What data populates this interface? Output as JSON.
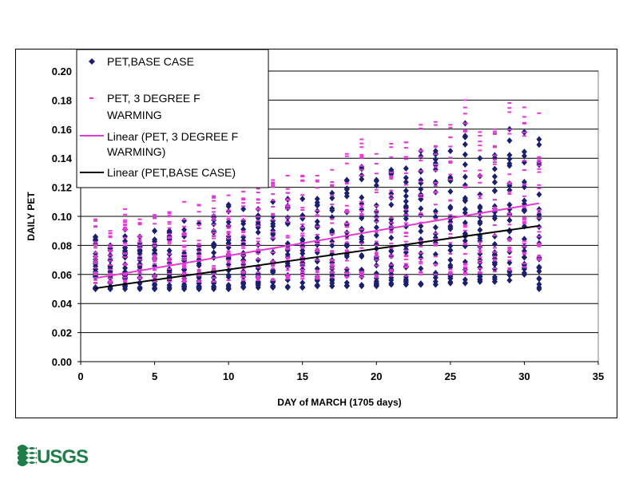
{
  "chart_data": {
    "type": "scatter",
    "title": "",
    "xlabel": "DAY of MARCH (1705 days)",
    "ylabel": "DAILY PET",
    "xlim": [
      0,
      35
    ],
    "ylim": [
      0,
      0.2
    ],
    "x_ticks": [
      "0",
      "5",
      "10",
      "15",
      "20",
      "25",
      "30",
      "35"
    ],
    "y_ticks": [
      "0.00",
      "0.02",
      "0.04",
      "0.06",
      "0.08",
      "0.10",
      "0.12",
      "0.14",
      "0.16",
      "0.18",
      "0.20"
    ],
    "grid": "horizontal",
    "legend_position": "top-left",
    "legend": [
      {
        "label_lines": [
          "PET,BASE CASE"
        ],
        "kind": "marker-diamond",
        "color": "#1a1f6e"
      },
      {
        "label_lines": [
          "PET, 3 DEGREE F",
          "WARMING"
        ],
        "kind": "marker-dash",
        "color": "#e23ad6"
      },
      {
        "label_lines": [
          "Linear (PET, 3 DEGREE F",
          "WARMING)"
        ],
        "kind": "line",
        "color": "#e23ad6"
      },
      {
        "label_lines": [
          "Linear (PET,BASE CASE)"
        ],
        "kind": "line",
        "color": "#000000"
      }
    ],
    "series": [
      {
        "name": "PET,BASE CASE",
        "marker": "diamond",
        "color": "#1a1f6e",
        "range_by_day": {
          "x": [
            1,
            2,
            3,
            4,
            5,
            6,
            7,
            8,
            9,
            10,
            11,
            12,
            13,
            14,
            15,
            16,
            17,
            18,
            19,
            20,
            21,
            22,
            23,
            24,
            25,
            26,
            27,
            28,
            29,
            30,
            31
          ],
          "min": [
            0.05,
            0.05,
            0.05,
            0.05,
            0.05,
            0.05,
            0.05,
            0.05,
            0.05,
            0.05,
            0.051,
            0.051,
            0.051,
            0.051,
            0.051,
            0.052,
            0.052,
            0.052,
            0.052,
            0.052,
            0.053,
            0.053,
            0.053,
            0.053,
            0.054,
            0.054,
            0.055,
            0.055,
            0.056,
            0.06,
            0.05
          ],
          "max": [
            0.086,
            0.08,
            0.091,
            0.086,
            0.09,
            0.09,
            0.097,
            0.095,
            0.1,
            0.108,
            0.105,
            0.105,
            0.11,
            0.112,
            0.112,
            0.112,
            0.116,
            0.125,
            0.134,
            0.125,
            0.132,
            0.133,
            0.145,
            0.145,
            0.145,
            0.164,
            0.14,
            0.142,
            0.16,
            0.158,
            0.153
          ]
        }
      },
      {
        "name": "PET, 3 DEGREE F WARMING",
        "marker": "dash",
        "color": "#e23ad6",
        "range_by_day": {
          "x": [
            1,
            2,
            3,
            4,
            5,
            6,
            7,
            8,
            9,
            10,
            11,
            12,
            13,
            14,
            15,
            16,
            17,
            18,
            19,
            20,
            21,
            22,
            23,
            24,
            25,
            26,
            27,
            28,
            29,
            30,
            31
          ],
          "min": [
            0.054,
            0.054,
            0.055,
            0.055,
            0.055,
            0.055,
            0.055,
            0.055,
            0.055,
            0.056,
            0.056,
            0.056,
            0.056,
            0.057,
            0.057,
            0.057,
            0.058,
            0.058,
            0.058,
            0.058,
            0.059,
            0.059,
            0.06,
            0.06,
            0.06,
            0.06,
            0.061,
            0.062,
            0.063,
            0.065,
            0.07
          ],
          "max": [
            0.098,
            0.09,
            0.105,
            0.098,
            0.101,
            0.103,
            0.11,
            0.108,
            0.114,
            0.122,
            0.12,
            0.119,
            0.125,
            0.128,
            0.128,
            0.128,
            0.132,
            0.143,
            0.153,
            0.143,
            0.15,
            0.151,
            0.163,
            0.165,
            0.163,
            0.18,
            0.158,
            0.16,
            0.178,
            0.175,
            0.171
          ]
        }
      }
    ],
    "trendlines": [
      {
        "name": "Linear (PET, 3 DEGREE F WARMING)",
        "color": "#e23ad6",
        "x": [
          1,
          31
        ],
        "y": [
          0.0575,
          0.109
        ]
      },
      {
        "name": "Linear (PET,BASE CASE)",
        "color": "#000000",
        "x": [
          1,
          31
        ],
        "y": [
          0.0505,
          0.0935
        ]
      }
    ]
  },
  "logo": {
    "text": "USGS",
    "color": "#1f7d4a"
  }
}
